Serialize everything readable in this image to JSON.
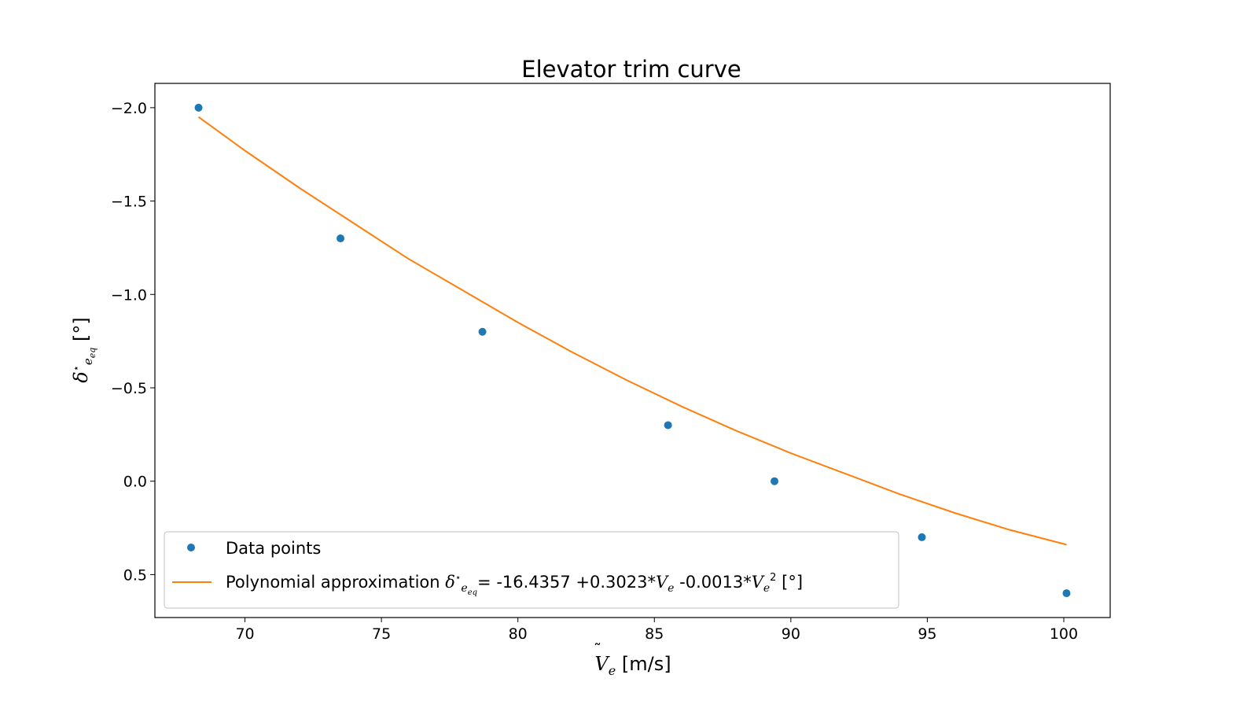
{
  "chart_data": {
    "type": "scatter",
    "title": "Elevator trim curve",
    "xlabel": "Ṽe [m/s]",
    "ylabel": "δ*e_eq [°]",
    "xlim": [
      66.7,
      101.7
    ],
    "ylim": [
      0.73,
      -2.13
    ],
    "y_inverted": true,
    "x_ticks": [
      70,
      75,
      80,
      85,
      90,
      95,
      100
    ],
    "x_tick_labels": [
      "70",
      "75",
      "80",
      "85",
      "90",
      "95",
      "100"
    ],
    "y_ticks": [
      -2.0,
      -1.5,
      -1.0,
      -0.5,
      0.0,
      0.5
    ],
    "y_tick_labels": [
      "−2.0",
      "−1.5",
      "−1.0",
      "−0.5",
      "0.0",
      "0.5"
    ],
    "grid": false,
    "legend_position": "bottom-left",
    "series": [
      {
        "name": "Data points",
        "kind": "scatter",
        "color": "#1f77b4",
        "x": [
          68.3,
          73.5,
          78.7,
          85.5,
          89.4,
          94.8,
          100.1
        ],
        "y": [
          -2.0,
          -1.3,
          -0.8,
          -0.3,
          0.0,
          0.3,
          0.6
        ]
      },
      {
        "name": "Polynomial approximation δ*e_eq = -16.4357 +0.3023*Ṽe -0.0013*Ṽe² [°]",
        "kind": "line",
        "color": "#ff7f0e",
        "x": [
          68.3,
          70,
          72,
          74,
          76,
          78,
          80,
          82,
          84,
          86,
          88,
          90,
          92,
          94,
          96,
          98,
          100.1
        ],
        "y": [
          -1.95,
          -1.77,
          -1.57,
          -1.38,
          -1.19,
          -1.02,
          -0.85,
          -0.69,
          -0.54,
          -0.4,
          -0.27,
          -0.15,
          -0.04,
          0.07,
          0.17,
          0.26,
          0.34
        ]
      }
    ],
    "legend": {
      "entry1": "Data points",
      "entry2_prefix": "Polynomial approximation ",
      "entry2_equation": "= -16.4357 +0.3023*",
      "entry2_mid": " -0.0013*",
      "entry2_suffix": " [°]"
    }
  }
}
